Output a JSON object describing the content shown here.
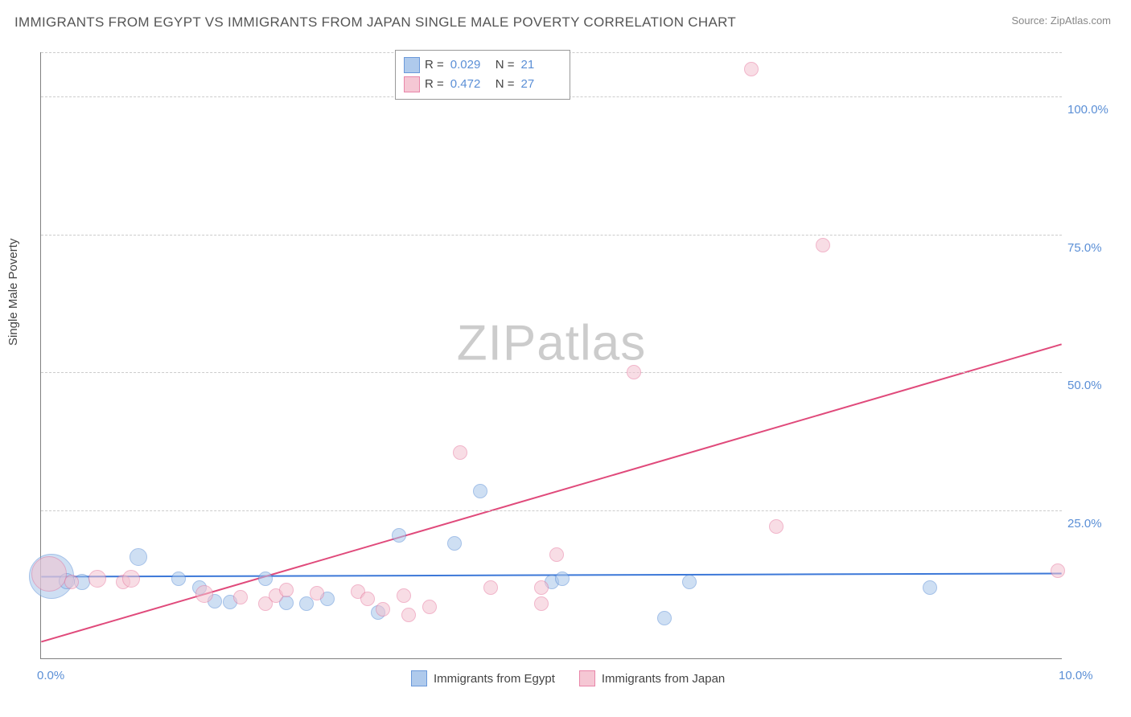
{
  "title": "IMMIGRANTS FROM EGYPT VS IMMIGRANTS FROM JAPAN SINGLE MALE POVERTY CORRELATION CHART",
  "source_label": "Source: ZipAtlas.com",
  "ylabel": "Single Male Poverty",
  "watermark": "ZIPatlas",
  "chart": {
    "type": "scatter",
    "xlim": [
      0,
      10
    ],
    "ylim": [
      -2,
      108
    ],
    "xticks": [
      {
        "v": 0.0,
        "label": "0.0%"
      },
      {
        "v": 10.0,
        "label": "10.0%"
      }
    ],
    "yticks": [
      {
        "v": 25,
        "label": "25.0%"
      },
      {
        "v": 50,
        "label": "50.0%"
      },
      {
        "v": 75,
        "label": "75.0%"
      },
      {
        "v": 100,
        "label": "100.0%"
      }
    ],
    "grid_y": [
      25,
      50,
      75,
      100,
      108
    ],
    "background_color": "#ffffff",
    "grid_color": "#cccccc",
    "series": [
      {
        "name": "Immigrants from Egypt",
        "fill": "#a7c5eb",
        "stroke": "#5b8fd6",
        "fill_opacity": 0.55,
        "r": 0.029,
        "n": 21,
        "trend": {
          "x1": 0,
          "y1": 12.8,
          "x2": 10,
          "y2": 13.4,
          "color": "#3c78d8",
          "width": 2
        },
        "points": [
          {
            "x": 0.1,
            "y": 13.0,
            "s": 28
          },
          {
            "x": 0.25,
            "y": 12.2,
            "s": 10
          },
          {
            "x": 0.4,
            "y": 12.0,
            "s": 10
          },
          {
            "x": 0.95,
            "y": 16.5,
            "s": 11
          },
          {
            "x": 1.35,
            "y": 12.6,
            "s": 9
          },
          {
            "x": 1.55,
            "y": 11.0,
            "s": 9
          },
          {
            "x": 1.7,
            "y": 8.5,
            "s": 9
          },
          {
            "x": 1.85,
            "y": 8.3,
            "s": 9
          },
          {
            "x": 2.2,
            "y": 12.5,
            "s": 9
          },
          {
            "x": 2.4,
            "y": 8.2,
            "s": 9
          },
          {
            "x": 2.6,
            "y": 8.0,
            "s": 9
          },
          {
            "x": 2.8,
            "y": 9.0,
            "s": 9
          },
          {
            "x": 3.3,
            "y": 6.5,
            "s": 9
          },
          {
            "x": 3.5,
            "y": 20.5,
            "s": 9
          },
          {
            "x": 4.05,
            "y": 19.0,
            "s": 9
          },
          {
            "x": 4.3,
            "y": 28.5,
            "s": 9
          },
          {
            "x": 5.0,
            "y": 12.0,
            "s": 9
          },
          {
            "x": 5.1,
            "y": 12.5,
            "s": 9
          },
          {
            "x": 6.1,
            "y": 5.5,
            "s": 9
          },
          {
            "x": 6.35,
            "y": 12.0,
            "s": 9
          },
          {
            "x": 8.7,
            "y": 11.0,
            "s": 9
          }
        ]
      },
      {
        "name": "Immigrants from Japan",
        "fill": "#f4c2d0",
        "stroke": "#e77aa0",
        "fill_opacity": 0.55,
        "r": 0.472,
        "n": 27,
        "trend": {
          "x1": 0,
          "y1": 1.0,
          "x2": 10,
          "y2": 55.0,
          "color": "#e04a7b",
          "width": 2
        },
        "points": [
          {
            "x": 0.08,
            "y": 13.5,
            "s": 22
          },
          {
            "x": 0.3,
            "y": 12.0,
            "s": 9
          },
          {
            "x": 0.55,
            "y": 12.5,
            "s": 11
          },
          {
            "x": 0.8,
            "y": 12.0,
            "s": 9
          },
          {
            "x": 0.88,
            "y": 12.5,
            "s": 11
          },
          {
            "x": 1.6,
            "y": 9.8,
            "s": 11
          },
          {
            "x": 1.95,
            "y": 9.2,
            "s": 9
          },
          {
            "x": 2.2,
            "y": 8.0,
            "s": 9
          },
          {
            "x": 2.3,
            "y": 9.5,
            "s": 9
          },
          {
            "x": 2.4,
            "y": 10.5,
            "s": 9
          },
          {
            "x": 2.7,
            "y": 10.0,
            "s": 9
          },
          {
            "x": 3.1,
            "y": 10.2,
            "s": 9
          },
          {
            "x": 3.2,
            "y": 9.0,
            "s": 9
          },
          {
            "x": 3.35,
            "y": 7.0,
            "s": 9
          },
          {
            "x": 3.55,
            "y": 9.5,
            "s": 9
          },
          {
            "x": 3.6,
            "y": 6.0,
            "s": 9
          },
          {
            "x": 3.8,
            "y": 7.5,
            "s": 9
          },
          {
            "x": 4.1,
            "y": 35.5,
            "s": 9
          },
          {
            "x": 4.4,
            "y": 11.0,
            "s": 9
          },
          {
            "x": 4.9,
            "y": 8.0,
            "s": 9
          },
          {
            "x": 4.9,
            "y": 11.0,
            "s": 9
          },
          {
            "x": 5.05,
            "y": 17.0,
            "s": 9
          },
          {
            "x": 5.8,
            "y": 50.0,
            "s": 9
          },
          {
            "x": 6.95,
            "y": 105.0,
            "s": 9
          },
          {
            "x": 7.2,
            "y": 22.0,
            "s": 9
          },
          {
            "x": 7.65,
            "y": 73.0,
            "s": 9
          },
          {
            "x": 9.95,
            "y": 14.0,
            "s": 9
          }
        ]
      }
    ]
  },
  "legend_top": {
    "r_label": "R =",
    "n_label": "N ="
  }
}
